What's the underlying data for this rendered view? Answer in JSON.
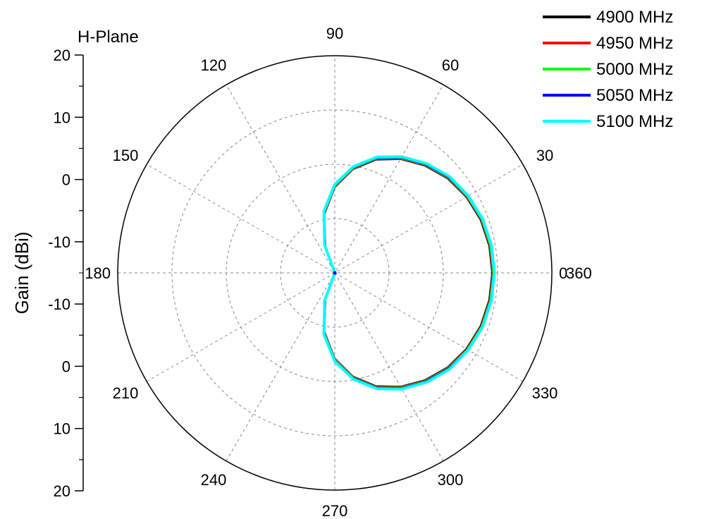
{
  "chart_data": {
    "type": "polar-line",
    "title": "H-Plane",
    "ylabel": "Gain (dBi)",
    "r_axis": {
      "range": [
        -20,
        20
      ],
      "tick_labels_upper": [
        "20",
        "10",
        "0",
        "-10"
      ],
      "tick_labels_lower": [
        "-10",
        "0",
        "10",
        "20"
      ]
    },
    "theta_ticks": [
      "0",
      "30",
      "60",
      "90",
      "120",
      "150",
      "180",
      "210",
      "240",
      "270",
      "300",
      "330",
      "360"
    ],
    "grid": true,
    "legend_placement": "top-right",
    "theta_deg": [
      0,
      10,
      20,
      30,
      40,
      50,
      60,
      70,
      80,
      90,
      100,
      110,
      120,
      130,
      140,
      150,
      160,
      170,
      180,
      190,
      200,
      210,
      220,
      230,
      240,
      250,
      260,
      270,
      280,
      290,
      300,
      310,
      320,
      330,
      340,
      350,
      360
    ],
    "series": [
      {
        "name": "4900 MHz",
        "color": "#000000",
        "values": [
          9.0,
          8.9,
          8.6,
          8.0,
          7.1,
          5.8,
          4.2,
          2.2,
          -0.6,
          -4.2,
          -9.0,
          -15.0,
          -20.0,
          -20.0,
          -20.0,
          -20.0,
          -20.0,
          -20.0,
          -20.0,
          -20.0,
          -20.0,
          -20.0,
          -20.0,
          -20.0,
          -20.0,
          -15.0,
          -9.0,
          -4.2,
          -0.6,
          2.2,
          4.2,
          5.8,
          7.1,
          8.0,
          8.6,
          8.9,
          9.0
        ]
      },
      {
        "name": "4950 MHz",
        "color": "#ff0000",
        "values": [
          9.1,
          9.0,
          8.7,
          8.1,
          7.2,
          5.9,
          4.3,
          2.3,
          -0.5,
          -4.1,
          -8.9,
          -14.9,
          -20.0,
          -20.0,
          -20.0,
          -20.0,
          -20.0,
          -20.0,
          -20.0,
          -20.0,
          -20.0,
          -20.0,
          -20.0,
          -20.0,
          -20.0,
          -14.9,
          -8.9,
          -4.1,
          -0.5,
          2.3,
          4.3,
          5.9,
          7.2,
          8.1,
          8.7,
          9.0,
          9.1
        ]
      },
      {
        "name": "5000 MHz",
        "color": "#00ff00",
        "values": [
          9.2,
          9.1,
          8.8,
          8.2,
          7.3,
          6.0,
          4.4,
          2.4,
          -0.4,
          -4.0,
          -8.8,
          -14.8,
          -20.0,
          -20.0,
          -20.0,
          -20.0,
          -20.0,
          -20.0,
          -20.0,
          -20.0,
          -20.0,
          -20.0,
          -20.0,
          -20.0,
          -20.0,
          -14.8,
          -8.8,
          -4.0,
          -0.4,
          2.4,
          4.4,
          6.0,
          7.3,
          8.2,
          8.8,
          9.1,
          9.2
        ]
      },
      {
        "name": "5050 MHz",
        "color": "#0000ff",
        "values": [
          9.3,
          9.2,
          8.9,
          8.3,
          7.4,
          6.1,
          4.5,
          2.5,
          -0.3,
          -3.9,
          -8.7,
          -14.7,
          -20.0,
          -20.0,
          -20.0,
          -20.0,
          -20.0,
          -20.0,
          -20.0,
          -20.0,
          -20.0,
          -20.0,
          -20.0,
          -20.0,
          -20.0,
          -14.7,
          -8.7,
          -3.9,
          -0.3,
          2.5,
          4.5,
          6.1,
          7.4,
          8.3,
          8.9,
          9.2,
          9.3
        ]
      },
      {
        "name": "5100 MHz",
        "color": "#00ffff",
        "values": [
          9.4,
          9.3,
          9.0,
          8.4,
          7.6,
          6.3,
          4.7,
          2.7,
          -0.1,
          -3.7,
          -8.5,
          -14.5,
          -20.0,
          -20.0,
          -20.0,
          -20.0,
          -20.0,
          -20.0,
          -20.0,
          -20.0,
          -20.0,
          -20.0,
          -20.0,
          -20.0,
          -20.0,
          -14.5,
          -8.5,
          -3.7,
          -0.1,
          2.7,
          4.7,
          6.3,
          7.6,
          8.4,
          9.0,
          9.3,
          9.4
        ]
      }
    ]
  }
}
